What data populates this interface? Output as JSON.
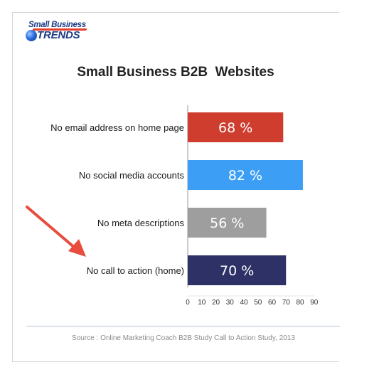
{
  "logo": {
    "line1": "Small Business",
    "line2": "TRENDS"
  },
  "colors": {
    "arrow": "#e74c3c",
    "axis": "#9a9a9a",
    "bar_label": "#ffffff"
  },
  "chart_data": {
    "type": "bar",
    "orientation": "horizontal",
    "title": "Small Business B2B  Websites",
    "categories": [
      "No email address on home page",
      "No social media accounts",
      "No meta descriptions",
      "No call to action (home)"
    ],
    "values": [
      68,
      82,
      56,
      70
    ],
    "data_labels": [
      "68 %",
      "82 %",
      "56 %",
      "70 %"
    ],
    "bar_colors": [
      "#cf3d2e",
      "#3d9ef5",
      "#9e9e9e",
      "#2e3165"
    ],
    "xlim": [
      0,
      90
    ],
    "xticks": [
      0,
      10,
      20,
      30,
      40,
      50,
      60,
      70,
      80,
      90
    ],
    "grid": false,
    "legend": "none",
    "annotations": [
      "arrow pointing to No call to action (home)"
    ]
  },
  "source": "Source : Online Marketing Coach B2B Study Call to Action Study, 2013"
}
